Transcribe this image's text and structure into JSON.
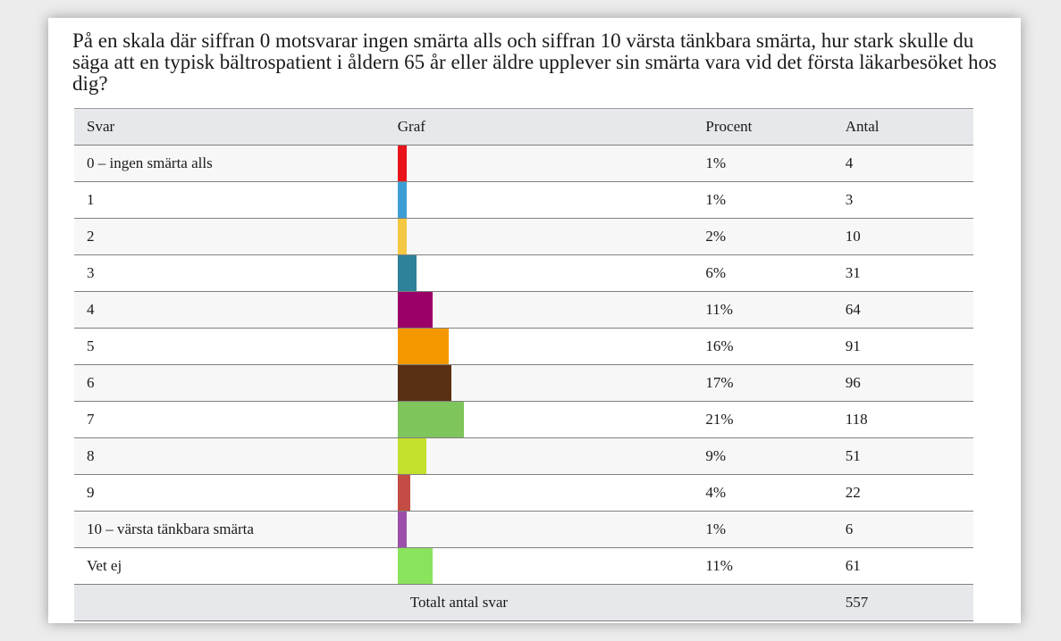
{
  "question": "På en skala där siffran 0 motsvarar ingen smärta alls och siffran 10 värsta tänkbara smärta, hur stark skulle du säga att en typisk bältrospatient i åldern 65 år eller äldre upplever sin smärta vara vid det första läkarbesöket hos dig?",
  "headers": {
    "svar": "Svar",
    "graf": "Graf",
    "procent": "Procent",
    "antal": "Antal"
  },
  "rows": [
    {
      "label": "0 – ingen smärta alls",
      "percent": "1%",
      "count": "4",
      "color": "#e8141a"
    },
    {
      "label": "1",
      "percent": "1%",
      "count": "3",
      "color": "#3d9ed6"
    },
    {
      "label": "2",
      "percent": "2%",
      "count": "10",
      "color": "#f5c843"
    },
    {
      "label": "3",
      "percent": "6%",
      "count": "31",
      "color": "#2e8299"
    },
    {
      "label": "4",
      "percent": "11%",
      "count": "64",
      "color": "#9b0068"
    },
    {
      "label": "5",
      "percent": "16%",
      "count": "91",
      "color": "#f59800"
    },
    {
      "label": "6",
      "percent": "17%",
      "count": "96",
      "color": "#5a2f14"
    },
    {
      "label": "7",
      "percent": "21%",
      "count": "118",
      "color": "#7ec55b"
    },
    {
      "label": "8",
      "percent": "9%",
      "count": "51",
      "color": "#c3e02c"
    },
    {
      "label": "9",
      "percent": "4%",
      "count": "22",
      "color": "#c34c44"
    },
    {
      "label": "10 – värsta tänkbara smärta",
      "percent": "1%",
      "count": "6",
      "color": "#9b4fa9"
    },
    {
      "label": "Vet ej",
      "percent": "11%",
      "count": "61",
      "color": "#8ae35c"
    }
  ],
  "total": {
    "label": "Totalt antal svar",
    "count": "557"
  },
  "chart_data": {
    "type": "bar",
    "categories": [
      "0 – ingen smärta alls",
      "1",
      "2",
      "3",
      "4",
      "5",
      "6",
      "7",
      "8",
      "9",
      "10 – värsta tänkbara smärta",
      "Vet ej"
    ],
    "values": [
      4,
      3,
      10,
      31,
      64,
      91,
      96,
      118,
      51,
      22,
      6,
      61
    ],
    "percent": [
      1,
      1,
      2,
      6,
      11,
      16,
      17,
      21,
      9,
      4,
      1,
      11
    ],
    "title": "På en skala där siffran 0 motsvarar ingen smärta alls och siffran 10 värsta tänkbara smärta, hur stark skulle du säga att en typisk bältrospatient i åldern 65 år eller äldre upplever sin smärta vara vid det första läkarbesöket hos dig?",
    "orientation": "horizontal",
    "total": 557
  }
}
